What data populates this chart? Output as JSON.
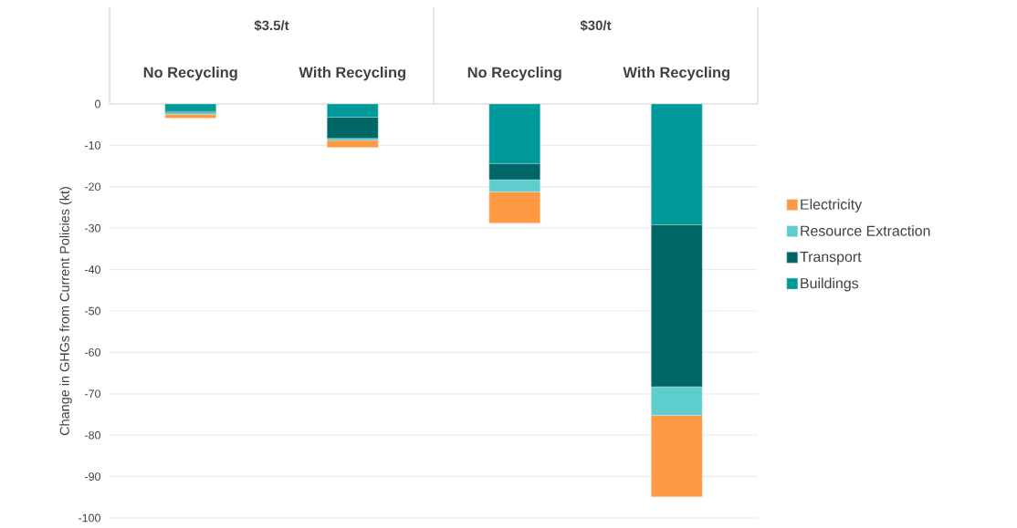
{
  "chart_data": {
    "type": "bar",
    "stacked": true,
    "ylabel": "Change in GHGs from Current Policies (kt)",
    "categories": [
      "No Recycling",
      "With Recycling",
      "No Recycling",
      "With Recycling"
    ],
    "annotations": [
      "$3.5/t",
      "$30/t"
    ],
    "series": [
      {
        "name": "Buildings",
        "color": "#009999",
        "values": [
          -1.8,
          -3.2,
          -14.4,
          -29.2
        ]
      },
      {
        "name": "Transport",
        "color": "#006666",
        "values": [
          -0.3,
          -5.1,
          -3.9,
          -39.1
        ]
      },
      {
        "name": "Resource Extraction",
        "color": "#5ecdcd",
        "values": [
          -0.4,
          -0.5,
          -2.9,
          -6.9
        ]
      },
      {
        "name": "Electricity",
        "color": "#ff9944",
        "values": [
          -0.9,
          -1.7,
          -7.6,
          -19.7
        ]
      }
    ],
    "ylim": [
      -100,
      0
    ],
    "yticks": [
      -100,
      -90,
      -80,
      -70,
      -60,
      -50,
      -40,
      -30,
      -20,
      -10,
      0
    ],
    "grid": "y",
    "legend": "right"
  }
}
